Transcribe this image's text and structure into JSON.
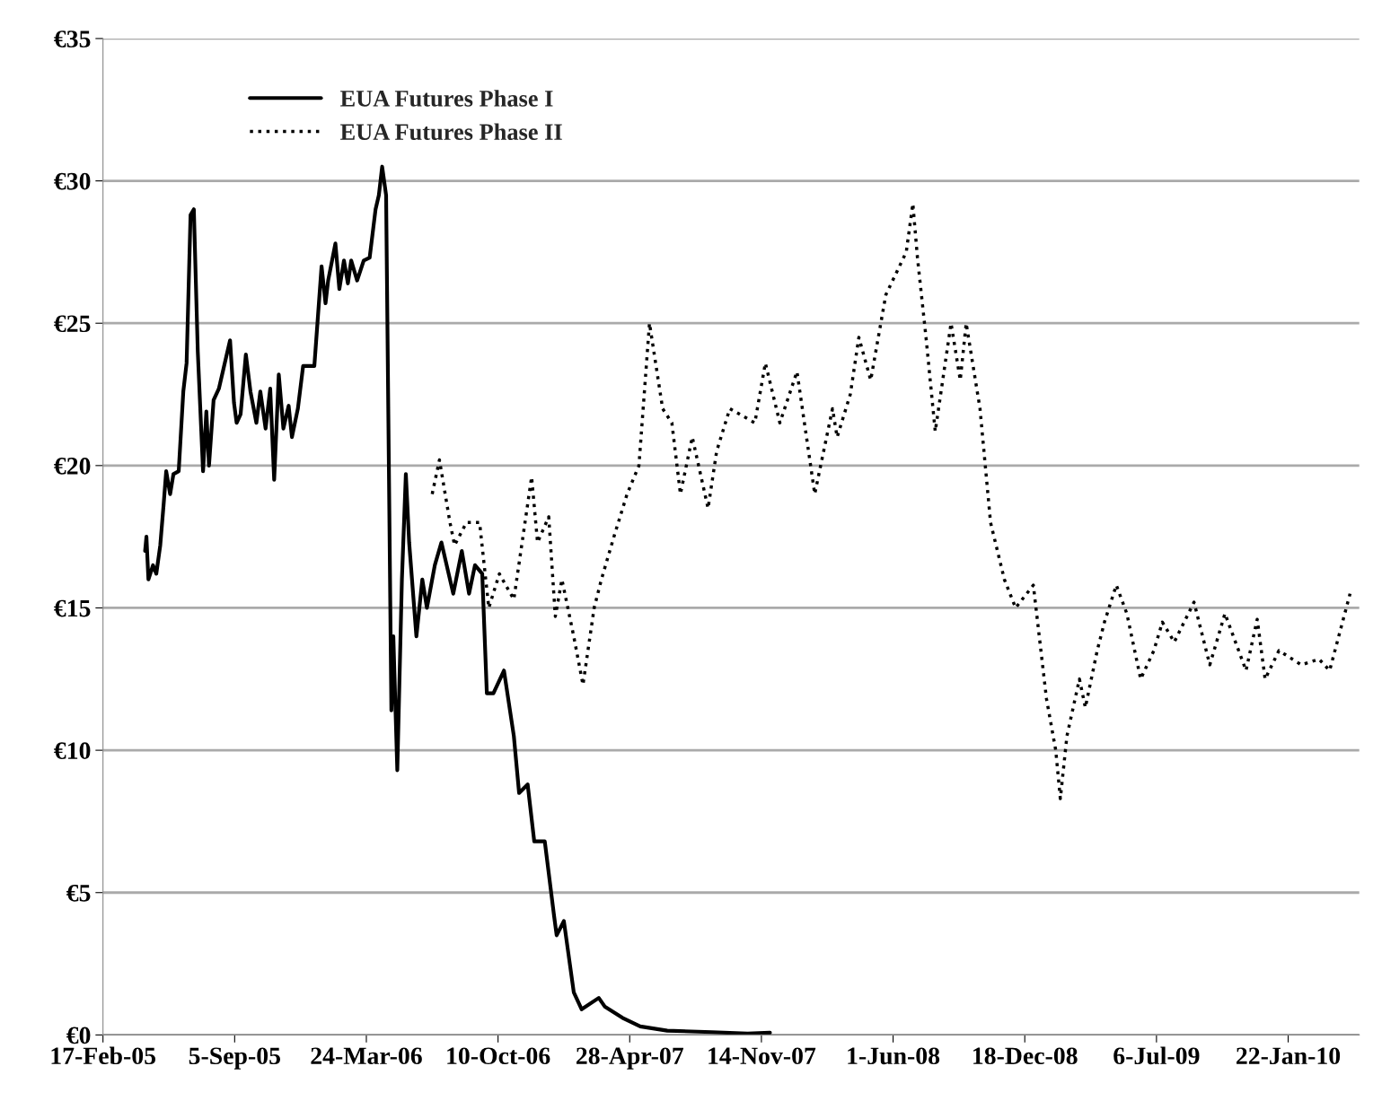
{
  "chart_data": {
    "type": "line",
    "xlim": [
      "2005-02-17",
      "2010-05-10"
    ],
    "xticks": [
      {
        "value": "2005-02-17",
        "label": "17-Feb-05"
      },
      {
        "value": "2005-09-05",
        "label": "5-Sep-05"
      },
      {
        "value": "2006-03-24",
        "label": "24-Mar-06"
      },
      {
        "value": "2006-10-10",
        "label": "10-Oct-06"
      },
      {
        "value": "2007-04-28",
        "label": "28-Apr-07"
      },
      {
        "value": "2007-11-14",
        "label": "14-Nov-07"
      },
      {
        "value": "2008-06-01",
        "label": "1-Jun-08"
      },
      {
        "value": "2008-12-18",
        "label": "18-Dec-08"
      },
      {
        "value": "2009-07-06",
        "label": "6-Jul-09"
      },
      {
        "value": "2010-01-22",
        "label": "22-Jan-10"
      }
    ],
    "ylim": [
      0,
      35
    ],
    "yticks": [
      {
        "value": 0,
        "label": "€0"
      },
      {
        "value": 5,
        "label": "€5"
      },
      {
        "value": 10,
        "label": "€10"
      },
      {
        "value": 15,
        "label": "€15"
      },
      {
        "value": 20,
        "label": "€20"
      },
      {
        "value": 25,
        "label": "€25"
      },
      {
        "value": 30,
        "label": "€30"
      },
      {
        "value": 35,
        "label": "€35"
      }
    ],
    "grid": "y",
    "legend": "top left",
    "series": [
      {
        "name": "EUA Futures Phase I",
        "color": "#000000",
        "line_style": "solid",
        "x": [
          "2005-04-22",
          "2005-04-24",
          "2005-04-27",
          "2005-05-04",
          "2005-05-09",
          "2005-05-15",
          "2005-05-20",
          "2005-05-24",
          "2005-05-30",
          "2005-06-04",
          "2005-06-12",
          "2005-06-19",
          "2005-06-24",
          "2005-06-30",
          "2005-07-05",
          "2005-07-11",
          "2005-07-19",
          "2005-07-24",
          "2005-07-28",
          "2005-08-04",
          "2005-08-12",
          "2005-08-19",
          "2005-08-29",
          "2005-09-04",
          "2005-09-08",
          "2005-09-14",
          "2005-09-22",
          "2005-09-29",
          "2005-10-08",
          "2005-10-14",
          "2005-10-22",
          "2005-10-29",
          "2005-11-04",
          "2005-11-11",
          "2005-11-18",
          "2005-11-26",
          "2005-12-01",
          "2005-12-10",
          "2005-12-18",
          "2006-01-04",
          "2006-01-15",
          "2006-01-21",
          "2006-01-25",
          "2006-02-05",
          "2006-02-11",
          "2006-02-18",
          "2006-02-24",
          "2006-03-01",
          "2006-03-10",
          "2006-03-20",
          "2006-03-29",
          "2006-04-07",
          "2006-04-12",
          "2006-04-17",
          "2006-04-23",
          "2006-05-01",
          "2006-05-04",
          "2006-05-10",
          "2006-05-17",
          "2006-05-23",
          "2006-05-28",
          "2006-06-08",
          "2006-06-17",
          "2006-06-24",
          "2006-07-06",
          "2006-07-16",
          "2006-08-03",
          "2006-08-16",
          "2006-08-27",
          "2006-09-05",
          "2006-09-16",
          "2006-09-23",
          "2006-10-03",
          "2006-10-19",
          "2006-11-03",
          "2006-11-11",
          "2006-11-24",
          "2006-12-04",
          "2006-12-20",
          "2007-01-03",
          "2007-01-07",
          "2007-01-18",
          "2007-02-02",
          "2007-02-14",
          "2007-03-12",
          "2007-03-21",
          "2007-04-17",
          "2007-05-14",
          "2007-06-24",
          "2007-08-31",
          "2007-10-24",
          "2007-11-27"
        ],
        "values": [
          17.0,
          17.5,
          16.0,
          16.5,
          16.2,
          17.2,
          18.6,
          19.8,
          19.0,
          19.7,
          19.8,
          22.6,
          23.6,
          28.8,
          29.0,
          24.0,
          19.8,
          21.9,
          20.0,
          22.3,
          22.7,
          23.4,
          24.4,
          22.2,
          21.5,
          21.8,
          23.9,
          22.6,
          21.5,
          22.6,
          21.3,
          22.7,
          19.5,
          23.2,
          21.3,
          22.1,
          21.0,
          22.0,
          23.5,
          23.5,
          27.0,
          25.7,
          26.5,
          27.8,
          26.2,
          27.2,
          26.4,
          27.2,
          26.5,
          27.2,
          27.3,
          29.0,
          29.5,
          30.5,
          29.5,
          11.4,
          14.0,
          9.3,
          16.0,
          19.7,
          17.3,
          14.0,
          16.0,
          15.0,
          16.5,
          17.3,
          15.5,
          17.0,
          15.5,
          16.5,
          16.2,
          12.0,
          12.0,
          12.8,
          10.5,
          8.5,
          8.8,
          6.8,
          6.8,
          4.2,
          3.5,
          4.0,
          1.5,
          0.9,
          1.3,
          1.0,
          0.6,
          0.3,
          0.15,
          0.1,
          0.05,
          0.08
        ]
      },
      {
        "name": "EUA Futures Phase II",
        "color": "#000000",
        "line_style": "dotted",
        "x": [
          "2006-07-02",
          "2006-07-13",
          "2006-07-29",
          "2006-08-05",
          "2006-08-23",
          "2006-09-12",
          "2006-09-26",
          "2006-10-12",
          "2006-11-03",
          "2006-11-30",
          "2006-12-09",
          "2006-12-26",
          "2007-01-05",
          "2007-01-15",
          "2007-02-02",
          "2007-02-16",
          "2007-03-05",
          "2007-03-16",
          "2007-04-04",
          "2007-04-24",
          "2007-05-12",
          "2007-05-28",
          "2007-06-17",
          "2007-07-01",
          "2007-07-14",
          "2007-08-01",
          "2007-08-25",
          "2007-09-07",
          "2007-09-27",
          "2007-11-04",
          "2007-11-20",
          "2007-12-12",
          "2008-01-07",
          "2008-02-03",
          "2008-03-01",
          "2008-03-08",
          "2008-03-28",
          "2008-04-10",
          "2008-04-28",
          "2008-05-21",
          "2008-06-21",
          "2008-07-01",
          "2008-07-08",
          "2008-07-21",
          "2008-08-04",
          "2008-08-28",
          "2008-09-11",
          "2008-09-20",
          "2008-10-11",
          "2008-10-27",
          "2008-11-17",
          "2008-12-04",
          "2008-12-31",
          "2009-01-20",
          "2009-02-03",
          "2009-02-10",
          "2009-02-20",
          "2009-03-11",
          "2009-03-20",
          "2009-04-07",
          "2009-04-18",
          "2009-05-06",
          "2009-05-22",
          "2009-06-12",
          "2009-07-02",
          "2009-07-15",
          "2009-08-02",
          "2009-09-01",
          "2009-09-25",
          "2009-10-18",
          "2009-11-19",
          "2009-12-06",
          "2009-12-18",
          "2010-01-08",
          "2010-02-11",
          "2010-03-10",
          "2010-03-26",
          "2010-04-26"
        ],
        "values": [
          19.0,
          20.2,
          18.0,
          17.2,
          18.0,
          18.0,
          15.0,
          16.2,
          15.3,
          19.6,
          17.3,
          18.2,
          14.7,
          16.0,
          14.0,
          12.3,
          15.0,
          16.0,
          17.5,
          19.0,
          20.0,
          25.0,
          22.0,
          21.5,
          19.0,
          21.0,
          18.5,
          20.5,
          22.0,
          21.5,
          23.6,
          21.5,
          23.3,
          19.0,
          22.0,
          21.0,
          22.5,
          24.5,
          23.0,
          26.0,
          27.5,
          29.2,
          27.3,
          24.5,
          21.2,
          25.0,
          23.0,
          25.0,
          22.0,
          18.0,
          16.0,
          15.0,
          15.8,
          11.8,
          10.0,
          8.3,
          10.5,
          12.5,
          11.5,
          13.5,
          14.5,
          15.8,
          14.8,
          12.5,
          13.5,
          14.5,
          13.8,
          15.2,
          13.0,
          14.8,
          12.8,
          14.6,
          12.5,
          13.5,
          13.0,
          13.2,
          12.8,
          15.5
        ]
      }
    ]
  }
}
